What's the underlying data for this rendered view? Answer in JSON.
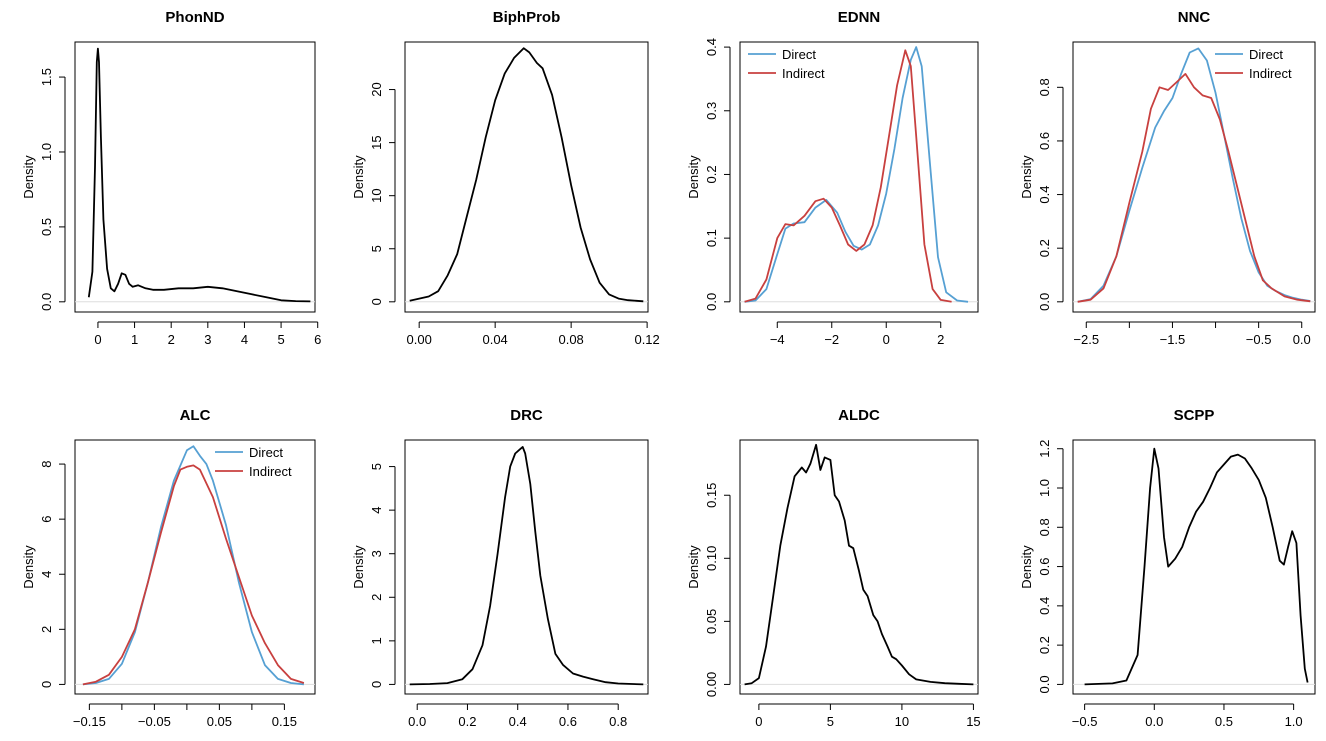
{
  "colors": {
    "direct": "#56a0d3",
    "indirect": "#c8403f",
    "single": "#000000"
  },
  "chart_data": [
    {
      "type": "line",
      "title": "PhonND",
      "ylabel": "Density",
      "xlim": [
        -0.5,
        5.8
      ],
      "ylim": [
        0,
        1.7
      ],
      "xticks": [
        0,
        1,
        2,
        3,
        4,
        5,
        6
      ],
      "yticks": [
        0,
        0.5,
        1,
        1.5
      ],
      "xtick_labels": [
        "0",
        "1",
        "2",
        "3",
        "4",
        "5",
        "6"
      ],
      "ytick_labels": [
        "0.0",
        "0.5",
        "1.0",
        "1.5"
      ],
      "legend": null,
      "series": [
        {
          "name": "",
          "color": "single",
          "x": [
            -0.25,
            -0.15,
            -0.08,
            -0.03,
            0,
            0.03,
            0.08,
            0.15,
            0.25,
            0.35,
            0.45,
            0.55,
            0.65,
            0.75,
            0.85,
            0.95,
            1.1,
            1.3,
            1.5,
            1.8,
            2.2,
            2.6,
            3.0,
            3.4,
            3.8,
            4.2,
            4.6,
            5.0,
            5.4,
            5.8
          ],
          "y": [
            0.03,
            0.2,
            0.9,
            1.6,
            1.69,
            1.6,
            1.1,
            0.55,
            0.22,
            0.09,
            0.07,
            0.12,
            0.19,
            0.18,
            0.12,
            0.1,
            0.11,
            0.09,
            0.08,
            0.08,
            0.09,
            0.09,
            0.1,
            0.09,
            0.07,
            0.05,
            0.03,
            0.01,
            0.005,
            0.003
          ]
        }
      ]
    },
    {
      "type": "line",
      "title": "BiphProb",
      "ylabel": "Density",
      "xlim": [
        -0.005,
        0.118
      ],
      "ylim": [
        0,
        24
      ],
      "xticks": [
        0,
        0.04,
        0.08,
        0.12
      ],
      "yticks": [
        0,
        5,
        10,
        15,
        20
      ],
      "xtick_labels": [
        "0.00",
        "0.04",
        "0.08",
        "0.12"
      ],
      "ytick_labels": [
        "0",
        "5",
        "10",
        "15",
        "20"
      ],
      "legend": null,
      "series": [
        {
          "name": "",
          "color": "single",
          "x": [
            -0.005,
            0,
            0.005,
            0.01,
            0.015,
            0.02,
            0.025,
            0.03,
            0.035,
            0.04,
            0.045,
            0.05,
            0.055,
            0.058,
            0.062,
            0.065,
            0.07,
            0.075,
            0.08,
            0.085,
            0.09,
            0.095,
            0.1,
            0.105,
            0.11,
            0.118
          ],
          "y": [
            0.1,
            0.3,
            0.5,
            1.0,
            2.5,
            4.5,
            8.0,
            11.5,
            15.5,
            19.0,
            21.5,
            23.0,
            23.9,
            23.5,
            22.5,
            22.0,
            19.5,
            15.5,
            11.0,
            7.0,
            4.0,
            1.8,
            0.7,
            0.3,
            0.15,
            0.05
          ]
        }
      ]
    },
    {
      "type": "line",
      "title": "EDNN",
      "ylabel": "Density",
      "xlim": [
        -5.2,
        3.2
      ],
      "ylim": [
        0,
        0.4
      ],
      "xticks": [
        -4,
        -2,
        0,
        2
      ],
      "yticks": [
        0,
        0.1,
        0.2,
        0.3,
        0.4
      ],
      "xtick_labels": [
        "−4",
        "−2",
        "0",
        "2"
      ],
      "ytick_labels": [
        "0.0",
        "0.1",
        "0.2",
        "0.3",
        "0.4"
      ],
      "legend": "top-left",
      "series": [
        {
          "name": "Direct",
          "color": "direct",
          "x": [
            -5.2,
            -4.8,
            -4.4,
            -4.0,
            -3.7,
            -3.4,
            -3.0,
            -2.6,
            -2.2,
            -1.8,
            -1.5,
            -1.2,
            -0.9,
            -0.6,
            -0.3,
            0.0,
            0.3,
            0.6,
            0.9,
            1.1,
            1.3,
            1.6,
            1.9,
            2.2,
            2.6,
            3.0
          ],
          "y": [
            0.0,
            0.002,
            0.02,
            0.075,
            0.115,
            0.123,
            0.125,
            0.148,
            0.16,
            0.14,
            0.11,
            0.088,
            0.082,
            0.09,
            0.12,
            0.17,
            0.24,
            0.32,
            0.38,
            0.4,
            0.37,
            0.22,
            0.07,
            0.015,
            0.002,
            0.0
          ]
        },
        {
          "name": "Indirect",
          "color": "indirect",
          "x": [
            -5.2,
            -4.8,
            -4.4,
            -4.0,
            -3.7,
            -3.4,
            -3.0,
            -2.6,
            -2.3,
            -2.0,
            -1.7,
            -1.4,
            -1.1,
            -0.8,
            -0.5,
            -0.2,
            0.1,
            0.4,
            0.7,
            0.9,
            1.1,
            1.4,
            1.7,
            2.0,
            2.4
          ],
          "y": [
            0.0,
            0.005,
            0.035,
            0.1,
            0.122,
            0.12,
            0.135,
            0.158,
            0.162,
            0.148,
            0.12,
            0.09,
            0.08,
            0.09,
            0.12,
            0.18,
            0.26,
            0.34,
            0.395,
            0.37,
            0.26,
            0.09,
            0.02,
            0.003,
            0.0
          ]
        }
      ]
    },
    {
      "type": "line",
      "title": "NNC",
      "ylabel": "Density",
      "xlim": [
        -2.6,
        0.1
      ],
      "ylim": [
        0,
        0.95
      ],
      "xticks": [
        -2.5,
        -2.0,
        -1.5,
        -1.0,
        -0.5,
        0.0
      ],
      "yticks": [
        0,
        0.2,
        0.4,
        0.6,
        0.8
      ],
      "xtick_labels": [
        "−2.5",
        "",
        "−1.5",
        "",
        "−0.5",
        "0.0"
      ],
      "ytick_labels": [
        "0.0",
        "0.2",
        "0.4",
        "0.6",
        "0.8"
      ],
      "legend": "top-right",
      "series": [
        {
          "name": "Direct",
          "color": "direct",
          "x": [
            -2.6,
            -2.45,
            -2.3,
            -2.15,
            -2.0,
            -1.85,
            -1.7,
            -1.6,
            -1.5,
            -1.4,
            -1.3,
            -1.2,
            -1.1,
            -1.0,
            -0.9,
            -0.8,
            -0.7,
            -0.6,
            -0.5,
            -0.4,
            -0.3,
            -0.2,
            -0.1,
            0.0,
            0.1
          ],
          "y": [
            0.0,
            0.01,
            0.06,
            0.17,
            0.34,
            0.5,
            0.65,
            0.71,
            0.76,
            0.85,
            0.93,
            0.945,
            0.9,
            0.78,
            0.62,
            0.46,
            0.31,
            0.19,
            0.11,
            0.06,
            0.04,
            0.025,
            0.015,
            0.008,
            0.003
          ]
        },
        {
          "name": "Indirect",
          "color": "indirect",
          "x": [
            -2.6,
            -2.45,
            -2.3,
            -2.15,
            -2.0,
            -1.85,
            -1.75,
            -1.65,
            -1.55,
            -1.45,
            -1.35,
            -1.25,
            -1.15,
            -1.05,
            -0.95,
            -0.85,
            -0.75,
            -0.65,
            -0.55,
            -0.45,
            -0.35,
            -0.2,
            -0.05,
            0.1
          ],
          "y": [
            0.0,
            0.008,
            0.05,
            0.17,
            0.37,
            0.56,
            0.72,
            0.8,
            0.79,
            0.82,
            0.85,
            0.8,
            0.77,
            0.76,
            0.68,
            0.56,
            0.43,
            0.3,
            0.17,
            0.08,
            0.05,
            0.02,
            0.008,
            0.002
          ]
        }
      ]
    },
    {
      "type": "line",
      "title": "ALC",
      "ylabel": "Density",
      "xlim": [
        -0.165,
        0.19
      ],
      "ylim": [
        0,
        8.7
      ],
      "xticks": [
        -0.15,
        -0.1,
        -0.05,
        0,
        0.05,
        0.1,
        0.15
      ],
      "yticks": [
        0,
        2,
        4,
        6,
        8
      ],
      "xtick_labels": [
        "−0.15",
        "",
        "−0.05",
        "",
        "0.05",
        "",
        "0.15"
      ],
      "ytick_labels": [
        "0",
        "2",
        "4",
        "6",
        "8"
      ],
      "legend": "top-right",
      "series": [
        {
          "name": "Direct",
          "color": "direct",
          "x": [
            -0.16,
            -0.14,
            -0.12,
            -0.1,
            -0.08,
            -0.06,
            -0.04,
            -0.02,
            0.0,
            0.01,
            0.02,
            0.03,
            0.04,
            0.06,
            0.08,
            0.1,
            0.12,
            0.14,
            0.16,
            0.18
          ],
          "y": [
            0.0,
            0.05,
            0.2,
            0.75,
            1.9,
            3.7,
            5.7,
            7.4,
            8.5,
            8.65,
            8.3,
            8.0,
            7.4,
            5.8,
            3.7,
            1.9,
            0.7,
            0.2,
            0.05,
            0.0
          ]
        },
        {
          "name": "Indirect",
          "color": "indirect",
          "x": [
            -0.16,
            -0.14,
            -0.12,
            -0.1,
            -0.08,
            -0.06,
            -0.04,
            -0.02,
            -0.01,
            0.0,
            0.01,
            0.02,
            0.04,
            0.06,
            0.08,
            0.1,
            0.12,
            0.14,
            0.16,
            0.18
          ],
          "y": [
            0.0,
            0.1,
            0.35,
            1.0,
            2.0,
            3.7,
            5.5,
            7.2,
            7.8,
            7.9,
            7.95,
            7.8,
            6.8,
            5.3,
            3.9,
            2.5,
            1.5,
            0.7,
            0.2,
            0.05
          ]
        }
      ]
    },
    {
      "type": "line",
      "title": "DRC",
      "ylabel": "Density",
      "xlim": [
        -0.03,
        0.9
      ],
      "ylim": [
        0,
        5.5
      ],
      "xticks": [
        0,
        0.2,
        0.4,
        0.6,
        0.8
      ],
      "yticks": [
        0,
        1,
        2,
        3,
        4,
        5
      ],
      "xtick_labels": [
        "0.0",
        "0.2",
        "0.4",
        "0.6",
        "0.8"
      ],
      "ytick_labels": [
        "0",
        "1",
        "2",
        "3",
        "4",
        "5"
      ],
      "legend": null,
      "series": [
        {
          "name": "",
          "color": "single",
          "x": [
            -0.03,
            0.05,
            0.12,
            0.18,
            0.22,
            0.26,
            0.29,
            0.32,
            0.35,
            0.37,
            0.39,
            0.41,
            0.42,
            0.43,
            0.45,
            0.47,
            0.49,
            0.52,
            0.55,
            0.58,
            0.62,
            0.66,
            0.7,
            0.75,
            0.8,
            0.9
          ],
          "y": [
            0.0,
            0.01,
            0.03,
            0.12,
            0.35,
            0.9,
            1.8,
            3.0,
            4.3,
            5.0,
            5.3,
            5.4,
            5.45,
            5.3,
            4.6,
            3.5,
            2.5,
            1.5,
            0.7,
            0.45,
            0.25,
            0.18,
            0.12,
            0.05,
            0.02,
            0.0
          ]
        }
      ]
    },
    {
      "type": "line",
      "title": "ALDC",
      "ylabel": "Density",
      "xlim": [
        -1,
        15
      ],
      "ylim": [
        0,
        0.19
      ],
      "xticks": [
        0,
        5,
        10,
        15
      ],
      "yticks": [
        0,
        0.05,
        0.1,
        0.15
      ],
      "xtick_labels": [
        "0",
        "5",
        "10",
        "15"
      ],
      "ytick_labels": [
        "0.00",
        "0.05",
        "0.10",
        "0.15"
      ],
      "legend": null,
      "series": [
        {
          "name": "",
          "color": "single",
          "x": [
            -1,
            -0.5,
            0,
            0.5,
            1,
            1.5,
            2,
            2.5,
            3,
            3.3,
            3.6,
            4,
            4.3,
            4.6,
            5,
            5.3,
            5.6,
            6,
            6.3,
            6.6,
            7,
            7.3,
            7.6,
            8,
            8.3,
            8.6,
            9,
            9.3,
            9.6,
            10,
            10.5,
            11,
            12,
            13,
            14,
            15
          ],
          "y": [
            0.0,
            0.001,
            0.005,
            0.03,
            0.07,
            0.11,
            0.14,
            0.165,
            0.172,
            0.168,
            0.175,
            0.19,
            0.17,
            0.18,
            0.178,
            0.15,
            0.145,
            0.13,
            0.11,
            0.108,
            0.09,
            0.075,
            0.07,
            0.055,
            0.05,
            0.04,
            0.03,
            0.022,
            0.02,
            0.015,
            0.008,
            0.004,
            0.002,
            0.001,
            0.0005,
            0.0
          ]
        }
      ]
    },
    {
      "type": "line",
      "title": "SCPP",
      "ylabel": "Density",
      "xlim": [
        -0.55,
        1.12
      ],
      "ylim": [
        0,
        1.22
      ],
      "xticks": [
        -0.5,
        0,
        0.5,
        1
      ],
      "yticks": [
        0,
        0.2,
        0.4,
        0.6,
        0.8,
        1.0,
        1.2
      ],
      "xtick_labels": [
        "−0.5",
        "0.0",
        "0.5",
        "1.0"
      ],
      "ytick_labels": [
        "0.0",
        "0.2",
        "0.4",
        "0.6",
        "0.8",
        "1.0",
        "1.2"
      ],
      "legend": null,
      "series": [
        {
          "name": "",
          "color": "single",
          "x": [
            -0.5,
            -0.3,
            -0.2,
            -0.12,
            -0.07,
            -0.03,
            0.0,
            0.03,
            0.07,
            0.1,
            0.15,
            0.2,
            0.25,
            0.3,
            0.35,
            0.4,
            0.45,
            0.5,
            0.55,
            0.6,
            0.65,
            0.7,
            0.75,
            0.8,
            0.85,
            0.9,
            0.93,
            0.96,
            0.99,
            1.02,
            1.05,
            1.08,
            1.1
          ],
          "y": [
            0.0,
            0.005,
            0.02,
            0.15,
            0.6,
            1.0,
            1.2,
            1.1,
            0.75,
            0.6,
            0.64,
            0.7,
            0.8,
            0.88,
            0.93,
            1.0,
            1.08,
            1.12,
            1.16,
            1.17,
            1.15,
            1.1,
            1.04,
            0.95,
            0.8,
            0.63,
            0.61,
            0.7,
            0.78,
            0.72,
            0.35,
            0.08,
            0.01
          ]
        }
      ]
    }
  ]
}
